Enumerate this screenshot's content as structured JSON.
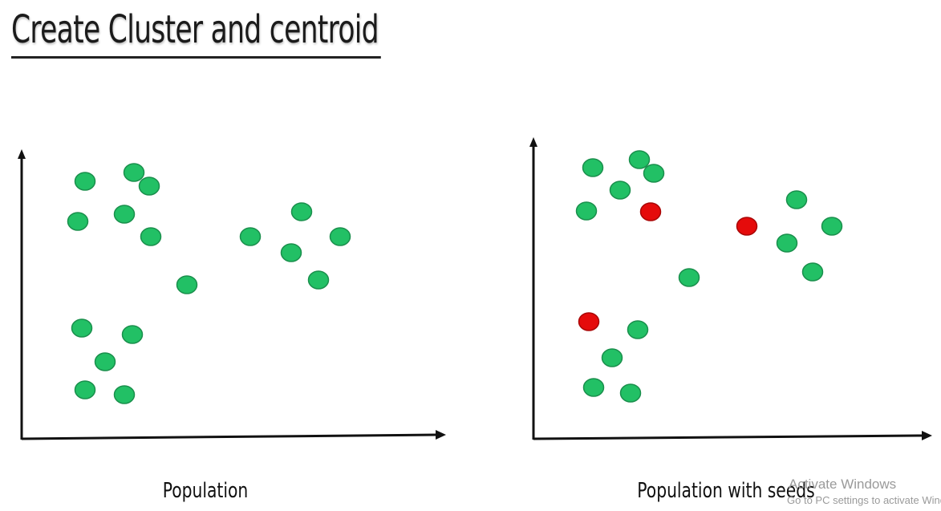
{
  "title": "Create Cluster and centroid",
  "panels": [
    {
      "caption": "Population",
      "points": [
        {
          "id": "p1",
          "cls": "pop"
        },
        {
          "id": "p2",
          "cls": "pop"
        },
        {
          "id": "p3",
          "cls": "pop"
        },
        {
          "id": "p4",
          "cls": "pop"
        },
        {
          "id": "p5",
          "cls": "pop"
        },
        {
          "id": "p6",
          "cls": "pop"
        },
        {
          "id": "p7",
          "cls": "pop"
        },
        {
          "id": "p8",
          "cls": "pop"
        },
        {
          "id": "p9",
          "cls": "pop"
        },
        {
          "id": "p10",
          "cls": "pop"
        },
        {
          "id": "p11",
          "cls": "pop"
        },
        {
          "id": "p12",
          "cls": "pop"
        },
        {
          "id": "p13",
          "cls": "pop"
        },
        {
          "id": "p14",
          "cls": "pop"
        },
        {
          "id": "p15",
          "cls": "pop"
        },
        {
          "id": "p16",
          "cls": "pop"
        },
        {
          "id": "p17",
          "cls": "pop"
        },
        {
          "id": "p18",
          "cls": "pop"
        }
      ]
    },
    {
      "caption": "Population with seeds",
      "points": [
        {
          "id": "q1",
          "cls": "pop"
        },
        {
          "id": "q2",
          "cls": "pop"
        },
        {
          "id": "q3",
          "cls": "pop"
        },
        {
          "id": "q4",
          "cls": "pop"
        },
        {
          "id": "q5",
          "cls": "pop"
        },
        {
          "id": "q6",
          "cls": "seed"
        },
        {
          "id": "q7",
          "cls": "seed"
        },
        {
          "id": "q8",
          "cls": "pop"
        },
        {
          "id": "q9",
          "cls": "pop"
        },
        {
          "id": "q10",
          "cls": "pop"
        },
        {
          "id": "q11",
          "cls": "pop"
        },
        {
          "id": "q12",
          "cls": "pop"
        },
        {
          "id": "q13",
          "cls": "seed"
        },
        {
          "id": "q14",
          "cls": "pop"
        },
        {
          "id": "q15",
          "cls": "pop"
        },
        {
          "id": "q16",
          "cls": "pop"
        },
        {
          "id": "q17",
          "cls": "pop"
        }
      ]
    }
  ],
  "colors": {
    "population": "#22c065",
    "population_stroke": "#1a8f4c",
    "seed": "#e50b0b",
    "seed_stroke": "#a90707",
    "axis": "#111111"
  },
  "watermark": {
    "title": "Activate Windows",
    "subtitle": "Go to PC settings to activate Windows."
  }
}
